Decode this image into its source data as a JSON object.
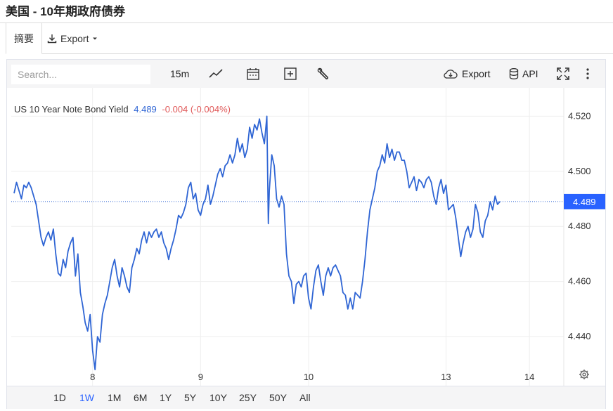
{
  "page": {
    "title": "美国 - 10年期政府债券"
  },
  "tabs": {
    "summary": "摘要",
    "export": "Export"
  },
  "toolbar": {
    "search_placeholder": "Search...",
    "interval": "15m",
    "export_label": "Export",
    "api_label": "API"
  },
  "legend": {
    "symbol": "US 10 Year Note Bond Yield",
    "value": "4.489",
    "change": "-0.004 (-0.004%)"
  },
  "ranges": [
    "1D",
    "1W",
    "1M",
    "6M",
    "1Y",
    "5Y",
    "10Y",
    "25Y",
    "50Y",
    "All"
  ],
  "active_range": "1W",
  "colors": {
    "line": "#2f65d4",
    "accent": "#2962ff",
    "negative": "#e05a5a",
    "price_label_bg": "#2962ff"
  },
  "chart_data": {
    "type": "line",
    "title": "US 10 Year Note Bond Yield",
    "xlabel": "",
    "ylabel": "",
    "x_ticks": [
      {
        "label": "8",
        "x": 16
      },
      {
        "label": "9",
        "x": 38
      },
      {
        "label": "10",
        "x": 60
      },
      {
        "label": "13",
        "x": 88
      },
      {
        "label": "14",
        "x": 105
      }
    ],
    "xlim": [
      0,
      112
    ],
    "y_ticks": [
      4.44,
      4.46,
      4.48,
      4.5,
      4.52
    ],
    "y_tick_labels": [
      "4.440",
      "4.460",
      "4.480",
      "4.500",
      "4.520"
    ],
    "ylim": [
      4.4191,
      4.5303
    ],
    "last_value": 4.489,
    "last_value_label": "4.489",
    "grid": true,
    "series": [
      {
        "name": "US 10 Year Note Bond Yield",
        "points": [
          [
            0,
            4.492
          ],
          [
            0.5,
            4.496
          ],
          [
            1,
            4.493
          ],
          [
            1.5,
            4.49
          ],
          [
            2,
            4.495
          ],
          [
            2.5,
            4.494
          ],
          [
            3,
            4.496
          ],
          [
            3.5,
            4.494
          ],
          [
            4,
            4.491
          ],
          [
            4.5,
            4.488
          ],
          [
            5,
            4.482
          ],
          [
            5.5,
            4.476
          ],
          [
            6,
            4.473
          ],
          [
            6.5,
            4.476
          ],
          [
            7,
            4.478
          ],
          [
            7.5,
            4.475
          ],
          [
            8,
            4.479
          ],
          [
            8.5,
            4.47
          ],
          [
            9,
            4.463
          ],
          [
            9.5,
            4.462
          ],
          [
            10,
            4.468
          ],
          [
            10.5,
            4.465
          ],
          [
            11,
            4.471
          ],
          [
            11.5,
            4.474
          ],
          [
            12,
            4.476
          ],
          [
            12.5,
            4.462
          ],
          [
            13,
            4.47
          ],
          [
            13.5,
            4.456
          ],
          [
            14,
            4.451
          ],
          [
            14.5,
            4.445
          ],
          [
            15,
            4.442
          ],
          [
            15.5,
            4.448
          ],
          [
            16,
            4.435
          ],
          [
            16.5,
            4.428
          ],
          [
            17,
            4.44
          ],
          [
            17.5,
            4.438
          ],
          [
            18,
            4.448
          ],
          [
            18.5,
            4.452
          ],
          [
            19,
            4.455
          ],
          [
            19.5,
            4.46
          ],
          [
            20,
            4.465
          ],
          [
            20.5,
            4.468
          ],
          [
            21,
            4.462
          ],
          [
            21.5,
            4.458
          ],
          [
            22,
            4.465
          ],
          [
            22.5,
            4.462
          ],
          [
            23,
            4.458
          ],
          [
            23.5,
            4.456
          ],
          [
            24,
            4.465
          ],
          [
            24.5,
            4.468
          ],
          [
            25,
            4.472
          ],
          [
            25.5,
            4.47
          ],
          [
            26,
            4.475
          ],
          [
            26.5,
            4.478
          ],
          [
            27,
            4.474
          ],
          [
            27.5,
            4.478
          ],
          [
            28,
            4.476
          ],
          [
            28.5,
            4.478
          ],
          [
            29,
            4.479
          ],
          [
            29.5,
            4.476
          ],
          [
            30,
            4.478
          ],
          [
            30.5,
            4.474
          ],
          [
            31,
            4.472
          ],
          [
            31.5,
            4.468
          ],
          [
            32,
            4.472
          ],
          [
            32.5,
            4.475
          ],
          [
            33,
            4.479
          ],
          [
            33.5,
            4.484
          ],
          [
            34,
            4.483
          ],
          [
            34.5,
            4.485
          ],
          [
            35,
            4.488
          ],
          [
            35.5,
            4.494
          ],
          [
            36,
            4.496
          ],
          [
            36.5,
            4.49
          ],
          [
            37,
            4.492
          ],
          [
            37.5,
            4.486
          ],
          [
            38,
            4.484
          ],
          [
            38.5,
            4.488
          ],
          [
            39,
            4.49
          ],
          [
            39.5,
            4.495
          ],
          [
            40,
            4.488
          ],
          [
            40.5,
            4.491
          ],
          [
            41,
            4.495
          ],
          [
            41.5,
            4.499
          ],
          [
            42,
            4.501
          ],
          [
            42.5,
            4.498
          ],
          [
            43,
            4.502
          ],
          [
            43.5,
            4.503
          ],
          [
            44,
            4.506
          ],
          [
            44.5,
            4.503
          ],
          [
            45,
            4.506
          ],
          [
            45.5,
            4.512
          ],
          [
            46,
            4.507
          ],
          [
            46.5,
            4.51
          ],
          [
            47,
            4.505
          ],
          [
            47.5,
            4.508
          ],
          [
            48,
            4.516
          ],
          [
            48.5,
            4.512
          ],
          [
            49,
            4.517
          ],
          [
            49.5,
            4.515
          ],
          [
            50,
            4.519
          ],
          [
            50.5,
            4.514
          ],
          [
            51,
            4.51
          ],
          [
            51.5,
            4.52
          ],
          [
            51.8,
            4.481
          ],
          [
            52,
            4.493
          ],
          [
            52.5,
            4.506
          ],
          [
            53,
            4.502
          ],
          [
            53.5,
            4.49
          ],
          [
            54,
            4.487
          ],
          [
            54.5,
            4.491
          ],
          [
            55,
            4.488
          ],
          [
            55.5,
            4.47
          ],
          [
            56,
            4.462
          ],
          [
            56.5,
            4.46
          ],
          [
            57,
            4.452
          ],
          [
            57.5,
            4.459
          ],
          [
            58,
            4.46
          ],
          [
            58.5,
            4.458
          ],
          [
            59,
            4.462
          ],
          [
            59.5,
            4.463
          ],
          [
            60,
            4.454
          ],
          [
            60.5,
            4.45
          ],
          [
            61,
            4.458
          ],
          [
            61.5,
            4.464
          ],
          [
            62,
            4.466
          ],
          [
            62.5,
            4.46
          ],
          [
            63,
            4.455
          ],
          [
            63.5,
            4.462
          ],
          [
            64,
            4.465
          ],
          [
            64.5,
            4.462
          ],
          [
            65,
            4.465
          ],
          [
            65.5,
            4.466
          ],
          [
            66,
            4.464
          ],
          [
            66.5,
            4.462
          ],
          [
            67,
            4.456
          ],
          [
            67.5,
            4.455
          ],
          [
            68,
            4.45
          ],
          [
            68.5,
            4.454
          ],
          [
            69,
            4.45
          ],
          [
            69.5,
            4.456
          ],
          [
            70,
            4.455
          ],
          [
            70.5,
            4.454
          ],
          [
            71,
            4.46
          ],
          [
            71.5,
            4.468
          ],
          [
            72,
            4.478
          ],
          [
            72.5,
            4.486
          ],
          [
            73,
            4.49
          ],
          [
            73.5,
            4.494
          ],
          [
            74,
            4.5
          ],
          [
            74.5,
            4.502
          ],
          [
            75,
            4.506
          ],
          [
            75.5,
            4.503
          ],
          [
            76,
            4.51
          ],
          [
            76.5,
            4.505
          ],
          [
            77,
            4.508
          ],
          [
            77.5,
            4.504
          ],
          [
            78,
            4.507
          ],
          [
            78.5,
            4.507
          ],
          [
            79,
            4.504
          ],
          [
            79.5,
            4.504
          ],
          [
            80,
            4.5
          ],
          [
            80.5,
            4.494
          ],
          [
            81,
            4.496
          ],
          [
            81.5,
            4.498
          ],
          [
            82,
            4.493
          ],
          [
            82.5,
            4.497
          ],
          [
            83,
            4.496
          ],
          [
            83.5,
            4.494
          ],
          [
            84,
            4.497
          ],
          [
            84.5,
            4.498
          ],
          [
            85,
            4.496
          ],
          [
            85.5,
            4.491
          ],
          [
            86,
            4.488
          ],
          [
            86.5,
            4.494
          ],
          [
            87,
            4.497
          ],
          [
            87.5,
            4.492
          ],
          [
            88,
            4.495
          ],
          [
            88.5,
            4.486
          ],
          [
            89,
            4.487
          ],
          [
            89.5,
            4.488
          ],
          [
            90,
            4.483
          ],
          [
            90.5,
            4.476
          ],
          [
            91,
            4.469
          ],
          [
            91.5,
            4.474
          ],
          [
            92,
            4.478
          ],
          [
            92.5,
            4.48
          ],
          [
            93,
            4.476
          ],
          [
            93.5,
            4.479
          ],
          [
            94,
            4.488
          ],
          [
            94.5,
            4.485
          ],
          [
            95,
            4.478
          ],
          [
            95.5,
            4.476
          ],
          [
            96,
            4.482
          ],
          [
            96.5,
            4.484
          ],
          [
            97,
            4.489
          ],
          [
            97.5,
            4.486
          ],
          [
            98,
            4.491
          ],
          [
            98.5,
            4.488
          ],
          [
            99,
            4.489
          ]
        ]
      }
    ]
  }
}
